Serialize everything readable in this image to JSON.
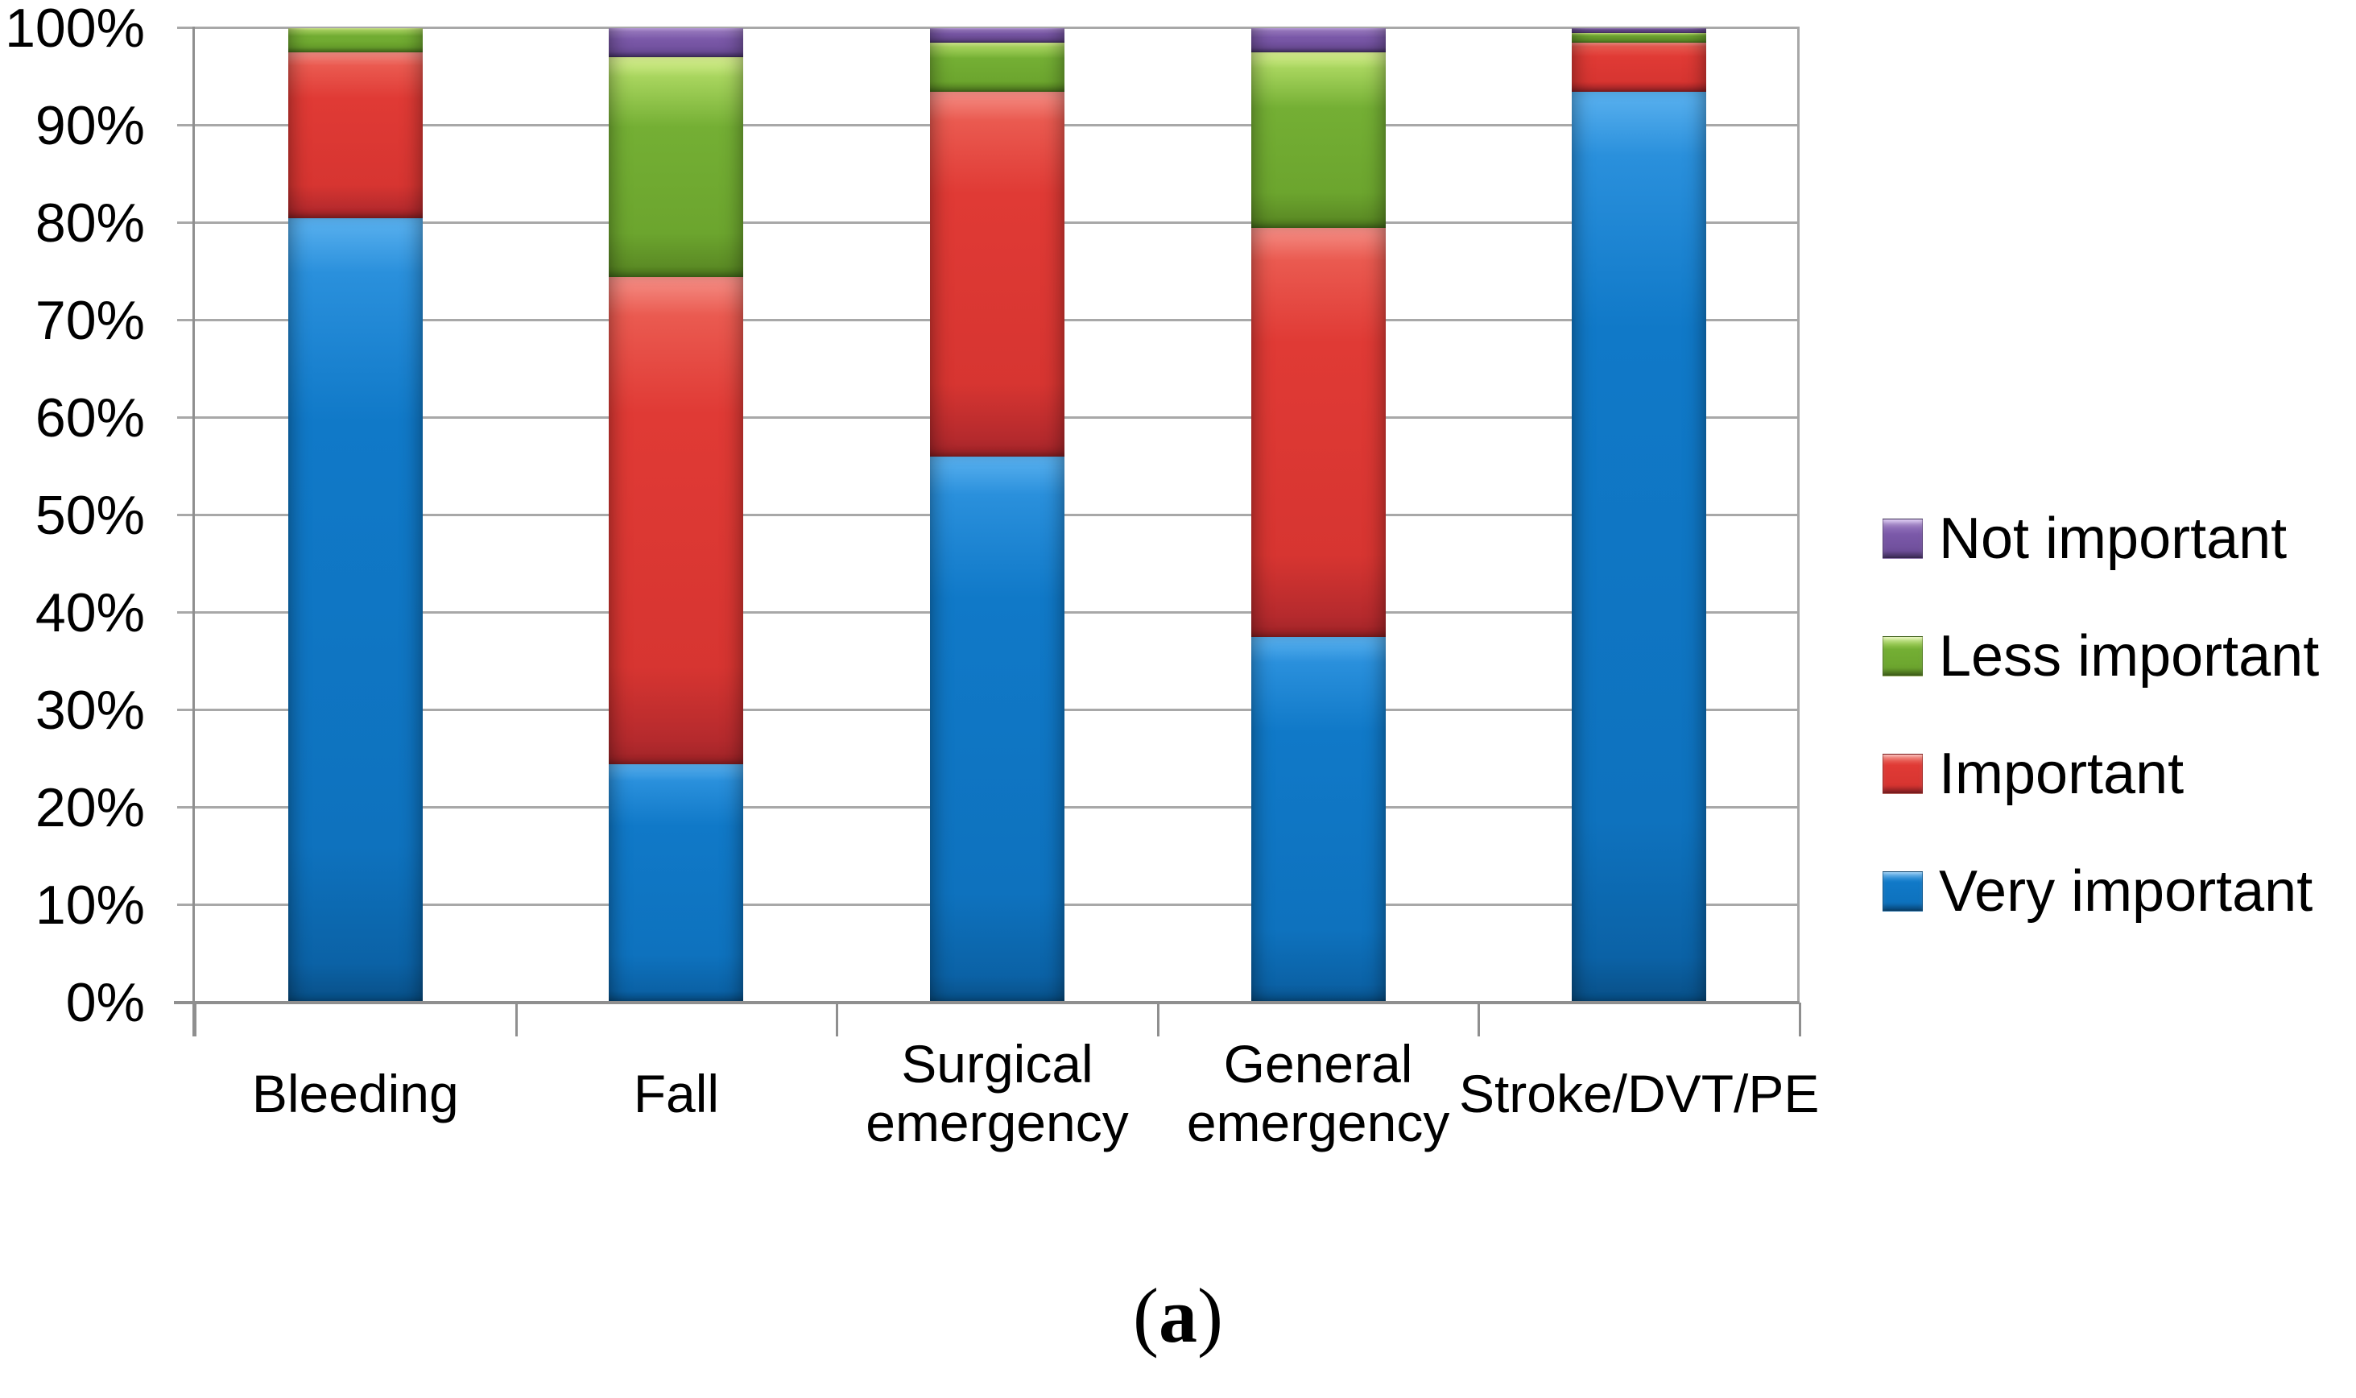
{
  "figure": {
    "caption": {
      "open": "(",
      "letter": "a",
      "close": ")"
    }
  },
  "chart_data": {
    "type": "bar",
    "stacked": true,
    "percent_stacked": true,
    "title": "",
    "xlabel": "",
    "ylabel": "",
    "ylim": [
      0,
      100
    ],
    "grid": "horizontal",
    "legend_position": "right",
    "categories": [
      "Bleeding",
      "Fall",
      "Surgical emergency",
      "General emergency",
      "Stroke/DVT/PE"
    ],
    "y_ticks": [
      "0%",
      "10%",
      "20%",
      "30%",
      "40%",
      "50%",
      "60%",
      "70%",
      "80%",
      "90%",
      "100%"
    ],
    "series": [
      {
        "name": "Very important",
        "key": "very",
        "color": "#1079c8",
        "values": [
          80.5,
          24.5,
          56,
          37.5,
          93.5
        ]
      },
      {
        "name": "Important",
        "key": "imp",
        "color": "#e03a35",
        "values": [
          17,
          50,
          37.5,
          42,
          5
        ]
      },
      {
        "name": "Less important",
        "key": "less",
        "color": "#74af34",
        "values": [
          2.5,
          22.5,
          5,
          18,
          1
        ]
      },
      {
        "name": "Not important",
        "key": "not",
        "color": "#7b59a9",
        "values": [
          0,
          3,
          1.5,
          2.5,
          0.5
        ]
      }
    ],
    "legend_order_top_to_bottom": [
      "Not important",
      "Less important",
      "Important",
      "Very important"
    ]
  },
  "colors": {
    "gridline": "#a8a8a8",
    "axis": "#8f8f8f",
    "text": "#000000",
    "background": "#ffffff"
  }
}
